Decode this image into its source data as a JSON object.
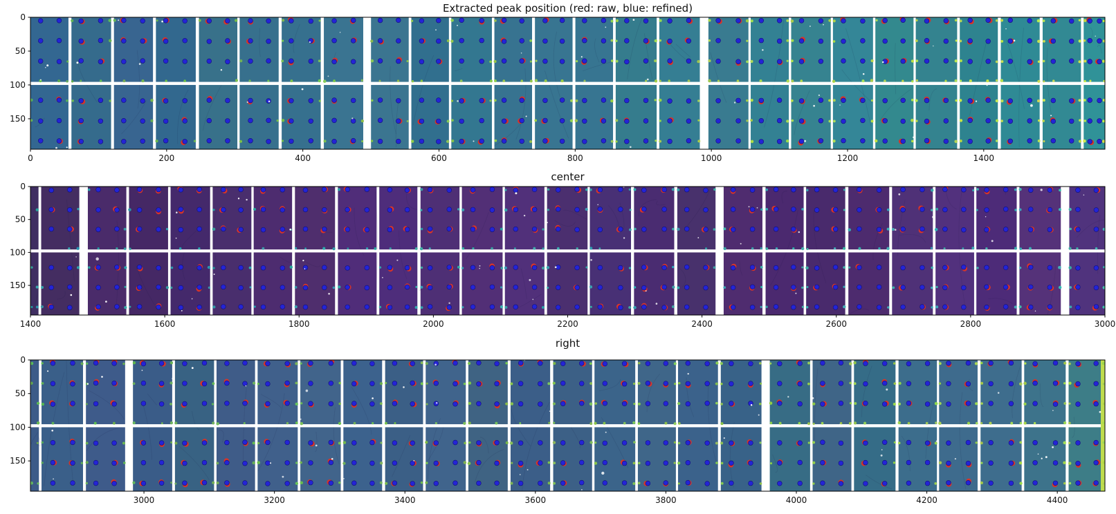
{
  "figure": {
    "background": "#ffffff",
    "kind": "matplotlib image grid with peak overlay",
    "series_legend": [
      {
        "name": "raw",
        "color": "#d4342c"
      },
      {
        "name": "refined",
        "color": "#2424d6"
      }
    ]
  },
  "chart_data": [
    {
      "type": "heatmap",
      "title": "Extracted peak position (red: raw, blue: refined)",
      "xlabel": "",
      "ylabel": "",
      "xlim": [
        0,
        1578
      ],
      "ylim": [
        0,
        195
      ],
      "x_ticks": [
        0,
        200,
        400,
        600,
        800,
        1000,
        1200,
        1400
      ],
      "y_ticks": [
        0,
        50,
        100,
        150
      ],
      "grid": false,
      "legend_position": "none",
      "background_stops": [
        [
          0,
          "#35658d"
        ],
        [
          0.55,
          "#377a90"
        ],
        [
          1,
          "#2f8d94"
        ]
      ],
      "modules": {
        "pitch": 62,
        "gap_width": 4,
        "first_module_width": null,
        "wide_gaps_at_x": [
          468,
          956
        ],
        "gap_color": "#ffffff",
        "horizontal_gap_y": [
          95.5,
          100
        ]
      },
      "peaks": {
        "dot_rows_y": [
          5,
          35,
          65,
          123,
          153,
          183
        ],
        "refined_color": "#2424d6",
        "raw_color": "#d4342c",
        "accent_row_y": 94,
        "accent_colors": [
          "#64b253",
          "#c9e44c"
        ]
      },
      "right_edge_stripe_color": null
    },
    {
      "type": "heatmap",
      "title": "center",
      "xlabel": "",
      "ylabel": "",
      "xlim": [
        1400,
        3000
      ],
      "ylim": [
        0,
        195
      ],
      "x_ticks": [
        1400,
        1600,
        1800,
        2000,
        2200,
        2400,
        2600,
        2800,
        3000
      ],
      "y_ticks": [
        0,
        50,
        100,
        150
      ],
      "grid": false,
      "legend_position": "none",
      "background_stops": [
        [
          0,
          "#442a60"
        ],
        [
          0.35,
          "#502e78"
        ],
        [
          0.7,
          "#4a2b6e"
        ],
        [
          1,
          "#533180"
        ]
      ],
      "modules": {
        "pitch": 63,
        "gap_width": 4,
        "first_module_width": 12,
        "wide_gaps_at_x": [
          1473,
          2426,
          2908
        ],
        "gap_color": "#ffffff",
        "horizontal_gap_y": [
          95.5,
          100
        ]
      },
      "peaks": {
        "dot_rows_y": [
          5,
          35,
          65,
          123,
          153,
          183
        ],
        "refined_color": "#2424d6",
        "raw_color": "#d4342c",
        "accent_row_y": 94,
        "accent_colors": [
          "#2f9aa6",
          "#3fb3b0"
        ]
      },
      "right_edge_stripe_color": null
    },
    {
      "type": "heatmap",
      "title": "right",
      "xlabel": "",
      "ylabel": "",
      "xlim": [
        2826,
        4473
      ],
      "ylim": [
        0,
        195
      ],
      "x_ticks": [
        3000,
        3200,
        3400,
        3600,
        3800,
        4000,
        4200,
        4400
      ],
      "y_ticks": [
        0,
        50,
        100,
        150
      ],
      "grid": false,
      "legend_position": "none",
      "background_stops": [
        [
          0,
          "#3c5c87"
        ],
        [
          0.6,
          "#3b6489"
        ],
        [
          0.9,
          "#3a6f89"
        ],
        [
          1,
          "#3f7e86"
        ]
      ],
      "modules": {
        "pitch": 65,
        "gap_width": 4,
        "first_module_width": 13,
        "wide_gaps_at_x": [
          2946,
          3935
        ],
        "gap_color": "#ffffff",
        "horizontal_gap_y": [
          95.5,
          100
        ]
      },
      "peaks": {
        "dot_rows_y": [
          5,
          35,
          65,
          123,
          153,
          183
        ],
        "refined_color": "#2424d6",
        "raw_color": "#d4342c",
        "accent_row_y": 94,
        "accent_colors": [
          "#5fae56",
          "#a7d44f"
        ]
      },
      "right_edge_stripe_color": "#bedc4e"
    }
  ]
}
